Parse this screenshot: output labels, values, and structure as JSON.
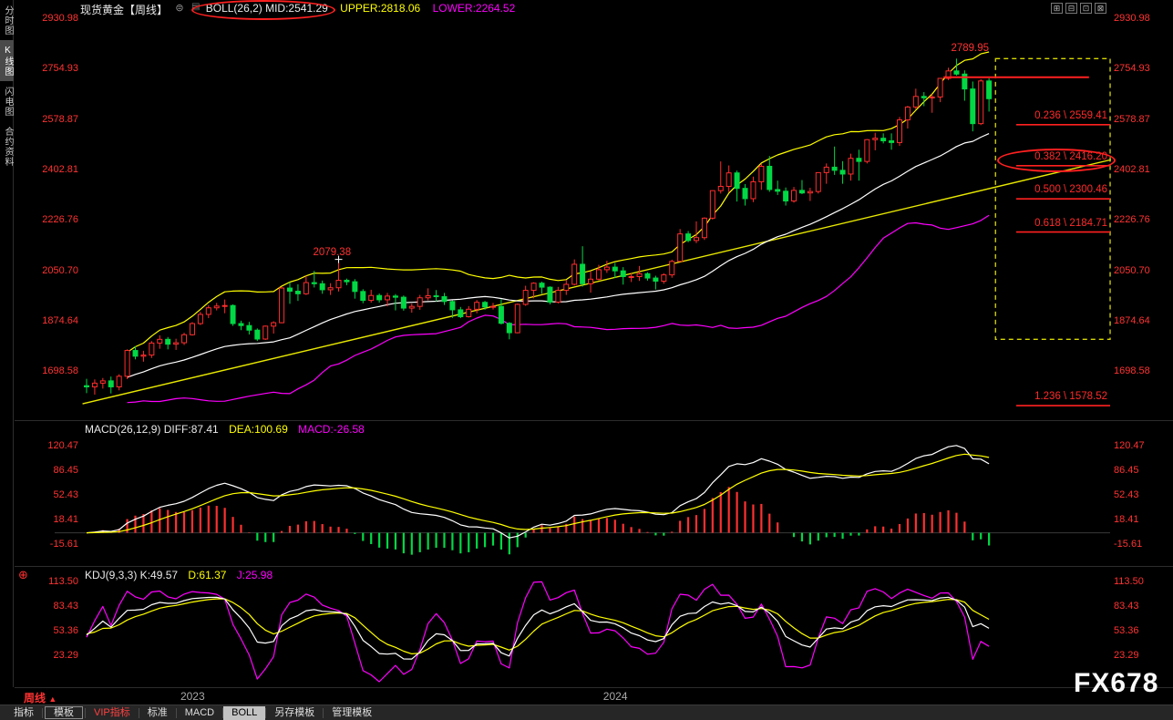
{
  "header": {
    "symbol": "现货黄金",
    "period": "【周线】",
    "menu_icon": "⊜",
    "indicator_icon": "▤",
    "boll": "BOLL(26,2) MID:2541.29",
    "upper": "UPPER:2818.06",
    "lower": "LOWER:2264.52"
  },
  "window_icons": [
    "⊞",
    "⊟",
    "⊡",
    "⊠"
  ],
  "sidebar": {
    "items": [
      {
        "label": "分时图",
        "active": false
      },
      {
        "label": "K线图",
        "active": true
      },
      {
        "label": "闪电图",
        "active": false
      },
      {
        "label": "合约资料",
        "active": false
      }
    ]
  },
  "macd_header": {
    "main": "MACD(26,12,9) DIFF:87.41",
    "dea": "DEA:100.69",
    "macd": "MACD:-26.58"
  },
  "kdj_header": {
    "icon": "⊕",
    "main": "KDJ(9,3,3) K:49.57",
    "d": "D:61.37",
    "j": "J:25.98"
  },
  "footer": {
    "period_label": "周线",
    "arrow": "▲",
    "watermark": "FX678"
  },
  "bottom_tabs": [
    {
      "label": "指标",
      "style": "plain"
    },
    {
      "label": "模板",
      "style": "outlined"
    },
    {
      "label": "VIP指标",
      "style": "vip"
    },
    {
      "label": "标准",
      "style": "plain"
    },
    {
      "label": "MACD",
      "style": "plain"
    },
    {
      "label": "BOLL",
      "style": "selected"
    },
    {
      "label": "另存模板",
      "style": "plain"
    },
    {
      "label": "管理模板",
      "style": "plain"
    }
  ],
  "chart_data": [
    {
      "type": "candlestick",
      "title": "现货黄金 周线 BOLL(26,2)",
      "y_ticks": [
        "2930.98",
        "2754.93",
        "2578.87",
        "2402.81",
        "2226.76",
        "2050.70",
        "1874.64",
        "1698.58"
      ],
      "x_labels": [
        {
          "text": "2023",
          "index": 13
        },
        {
          "text": "2024",
          "index": 65
        }
      ],
      "colors": {
        "up": "#ff2d2d",
        "down": "#00d944",
        "boll_upper": "#ffff00",
        "boll_mid": "#ffffff",
        "boll_lower": "#ff00ff",
        "axis": "#ff3232"
      },
      "boll": {
        "period": 26,
        "mult": 2,
        "mid": 2541.29,
        "upper": 2818.06,
        "lower": 2264.52
      },
      "candles": [
        [
          1648,
          1672,
          1622,
          1644
        ],
        [
          1644,
          1670,
          1617,
          1657
        ],
        [
          1657,
          1675,
          1638,
          1665
        ],
        [
          1665,
          1680,
          1621,
          1644
        ],
        [
          1644,
          1688,
          1632,
          1681
        ],
        [
          1681,
          1775,
          1671,
          1771
        ],
        [
          1771,
          1786,
          1740,
          1751
        ],
        [
          1751,
          1770,
          1732,
          1755
        ],
        [
          1755,
          1804,
          1745,
          1797
        ],
        [
          1797,
          1824,
          1777,
          1810
        ],
        [
          1810,
          1818,
          1775,
          1793
        ],
        [
          1793,
          1812,
          1773,
          1798
        ],
        [
          1798,
          1833,
          1790,
          1826
        ],
        [
          1826,
          1870,
          1823,
          1865
        ],
        [
          1865,
          1906,
          1860,
          1897
        ],
        [
          1897,
          1929,
          1884,
          1920
        ],
        [
          1920,
          1937,
          1911,
          1926
        ],
        [
          1926,
          1949,
          1901,
          1928
        ],
        [
          1928,
          1932,
          1857,
          1865
        ],
        [
          1865,
          1875,
          1842,
          1858
        ],
        [
          1858,
          1871,
          1827,
          1842
        ],
        [
          1842,
          1848,
          1804,
          1811
        ],
        [
          1811,
          1858,
          1808,
          1856
        ],
        [
          1856,
          1873,
          1830,
          1868
        ],
        [
          1868,
          1993,
          1866,
          1989
        ],
        [
          1989,
          2010,
          1934,
          1978
        ],
        [
          1978,
          2002,
          1944,
          1969
        ],
        [
          1969,
          2032,
          1965,
          2008
        ],
        [
          2008,
          2049,
          1991,
          2004
        ],
        [
          2004,
          2015,
          1969,
          1983
        ],
        [
          1983,
          2006,
          1965,
          1990
        ],
        [
          1990,
          2079,
          1977,
          2016
        ],
        [
          2016,
          2022,
          1999,
          2011
        ],
        [
          2011,
          2020,
          1952,
          1977
        ],
        [
          1977,
          1985,
          1936,
          1946
        ],
        [
          1946,
          1983,
          1938,
          1963
        ],
        [
          1963,
          1970,
          1938,
          1948
        ],
        [
          1948,
          1972,
          1925,
          1961
        ],
        [
          1961,
          1968,
          1911,
          1957
        ],
        [
          1957,
          1963,
          1910,
          1919
        ],
        [
          1919,
          1935,
          1903,
          1925
        ],
        [
          1925,
          1965,
          1913,
          1955
        ],
        [
          1955,
          1988,
          1946,
          1962
        ],
        [
          1962,
          1982,
          1942,
          1959
        ],
        [
          1959,
          1972,
          1930,
          1942
        ],
        [
          1942,
          1946,
          1885,
          1913
        ],
        [
          1913,
          1923,
          1884,
          1889
        ],
        [
          1889,
          1926,
          1886,
          1915
        ],
        [
          1915,
          1947,
          1901,
          1939
        ],
        [
          1939,
          1944,
          1913,
          1923
        ],
        [
          1923,
          1937,
          1914,
          1925
        ],
        [
          1925,
          1950,
          1862,
          1866
        ],
        [
          1866,
          1870,
          1810,
          1833
        ],
        [
          1833,
          1935,
          1831,
          1932
        ],
        [
          1932,
          1997,
          1927,
          1981
        ],
        [
          1981,
          2009,
          1953,
          2006
        ],
        [
          2006,
          2011,
          1969,
          1992
        ],
        [
          1992,
          1995,
          1932,
          1940
        ],
        [
          1940,
          1993,
          1935,
          1981
        ],
        [
          1981,
          2018,
          1965,
          2002
        ],
        [
          2002,
          2089,
          1998,
          2072
        ],
        [
          2072,
          2135,
          1994,
          2004
        ],
        [
          2004,
          2047,
          1973,
          2020
        ],
        [
          2020,
          2070,
          2016,
          2053
        ],
        [
          2053,
          2084,
          2042,
          2062
        ],
        [
          2062,
          2077,
          2024,
          2049
        ],
        [
          2049,
          2062,
          2001,
          2029
        ],
        [
          2029,
          2041,
          2010,
          2029
        ],
        [
          2029,
          2066,
          2014,
          2039
        ],
        [
          2039,
          2044,
          2015,
          2024
        ],
        [
          2024,
          2032,
          1984,
          2013
        ],
        [
          2013,
          2041,
          2004,
          2035
        ],
        [
          2035,
          2088,
          2025,
          2082
        ],
        [
          2082,
          2195,
          2081,
          2178
        ],
        [
          2178,
          2188,
          2149,
          2155
        ],
        [
          2155,
          2222,
          2146,
          2165
        ],
        [
          2165,
          2236,
          2157,
          2233
        ],
        [
          2233,
          2330,
          2228,
          2329
        ],
        [
          2329,
          2431,
          2319,
          2344
        ],
        [
          2344,
          2417,
          2324,
          2391
        ],
        [
          2391,
          2399,
          2291,
          2337
        ],
        [
          2337,
          2352,
          2277,
          2301
        ],
        [
          2301,
          2378,
          2289,
          2360
        ],
        [
          2360,
          2422,
          2332,
          2414
        ],
        [
          2414,
          2450,
          2325,
          2333
        ],
        [
          2333,
          2364,
          2314,
          2327
        ],
        [
          2327,
          2340,
          2277,
          2293
        ],
        [
          2293,
          2342,
          2287,
          2330
        ],
        [
          2330,
          2366,
          2317,
          2321
        ],
        [
          2321,
          2339,
          2293,
          2326
        ],
        [
          2326,
          2393,
          2319,
          2392
        ],
        [
          2392,
          2424,
          2353,
          2411
        ],
        [
          2411,
          2483,
          2384,
          2400
        ],
        [
          2400,
          2432,
          2353,
          2387
        ],
        [
          2387,
          2458,
          2364,
          2442
        ],
        [
          2442,
          2472,
          2364,
          2431
        ],
        [
          2431,
          2509,
          2424,
          2507
        ],
        [
          2507,
          2531,
          2470,
          2512
        ],
        [
          2512,
          2529,
          2494,
          2503
        ],
        [
          2503,
          2529,
          2472,
          2497
        ],
        [
          2497,
          2586,
          2485,
          2576
        ],
        [
          2576,
          2625,
          2546,
          2621
        ],
        [
          2621,
          2685,
          2613,
          2658
        ],
        [
          2658,
          2673,
          2624,
          2653
        ],
        [
          2653,
          2666,
          2601,
          2656
        ],
        [
          2656,
          2722,
          2638,
          2721
        ],
        [
          2721,
          2758,
          2715,
          2747
        ],
        [
          2747,
          2790,
          2731,
          2736
        ],
        [
          2736,
          2749,
          2643,
          2684
        ],
        [
          2684,
          2710,
          2536,
          2563
        ],
        [
          2563,
          2718,
          2558,
          2712
        ],
        [
          2712,
          2721,
          2605,
          2650
        ]
      ],
      "price_annotations": [
        {
          "text": "2079.38",
          "index": 31,
          "price": 2079.38
        },
        {
          "text": "2789.95",
          "index": 107,
          "price": 2789.95
        }
      ],
      "fib_levels": [
        {
          "label": "0.236 \\ 2559.41",
          "price": 2559.41,
          "circled": false
        },
        {
          "label": "0.382 \\ 2416.20",
          "price": 2416.2,
          "circled": true
        },
        {
          "label": "0.500 \\ 2300.46",
          "price": 2300.46,
          "circled": false
        },
        {
          "label": "0.618 \\ 2184.71",
          "price": 2184.71,
          "circled": false
        },
        {
          "label": "1.236 \\ 1578.52",
          "price": 1578.52,
          "circled": false
        }
      ],
      "fib_box": {
        "from_index": 111.8,
        "to_index": 125.9,
        "top_price": 2789.95,
        "bottom_price": 1810
      },
      "resistance_line": {
        "price": 2725,
        "from_index": 105.4,
        "to_index": 123.3
      },
      "trend_line": {
        "from_index": -0.5,
        "from_price": 1585,
        "to_index": 126,
        "to_price": 2437
      }
    },
    {
      "type": "macd",
      "params": "26,12,9",
      "diff": 87.41,
      "dea": 100.69,
      "macd": -26.58,
      "y_ticks": [
        "120.47",
        "86.45",
        "52.43",
        "18.41",
        "-15.61"
      ],
      "colors": {
        "diff": "#ffffff",
        "dea": "#ffff00",
        "pos": "#ff3030",
        "neg": "#00d944"
      }
    },
    {
      "type": "kdj",
      "params": "9,3,3",
      "k": 49.57,
      "d": 61.37,
      "j": 25.98,
      "y_ticks": [
        "113.50",
        "83.43",
        "53.36",
        "23.29"
      ],
      "colors": {
        "k": "#ffffff",
        "d": "#ffff00",
        "j": "#ff00ff"
      }
    }
  ]
}
